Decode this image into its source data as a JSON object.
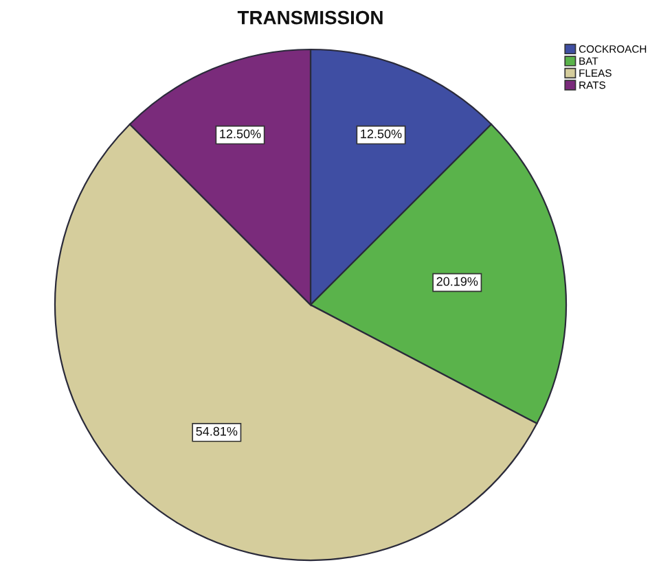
{
  "chart_data": {
    "type": "pie",
    "title": "TRANSMISSION",
    "categories": [
      "COCKROACH",
      "BAT",
      "FLEAS",
      "RATS"
    ],
    "values": [
      12.5,
      20.19,
      54.81,
      12.5
    ],
    "colors": [
      "#3f4ea3",
      "#5ab34b",
      "#d5cd9c",
      "#7a2b7b"
    ],
    "value_labels": [
      "12.50%",
      "20.19%",
      "54.81%",
      "12.50%"
    ],
    "legend": "top right"
  }
}
